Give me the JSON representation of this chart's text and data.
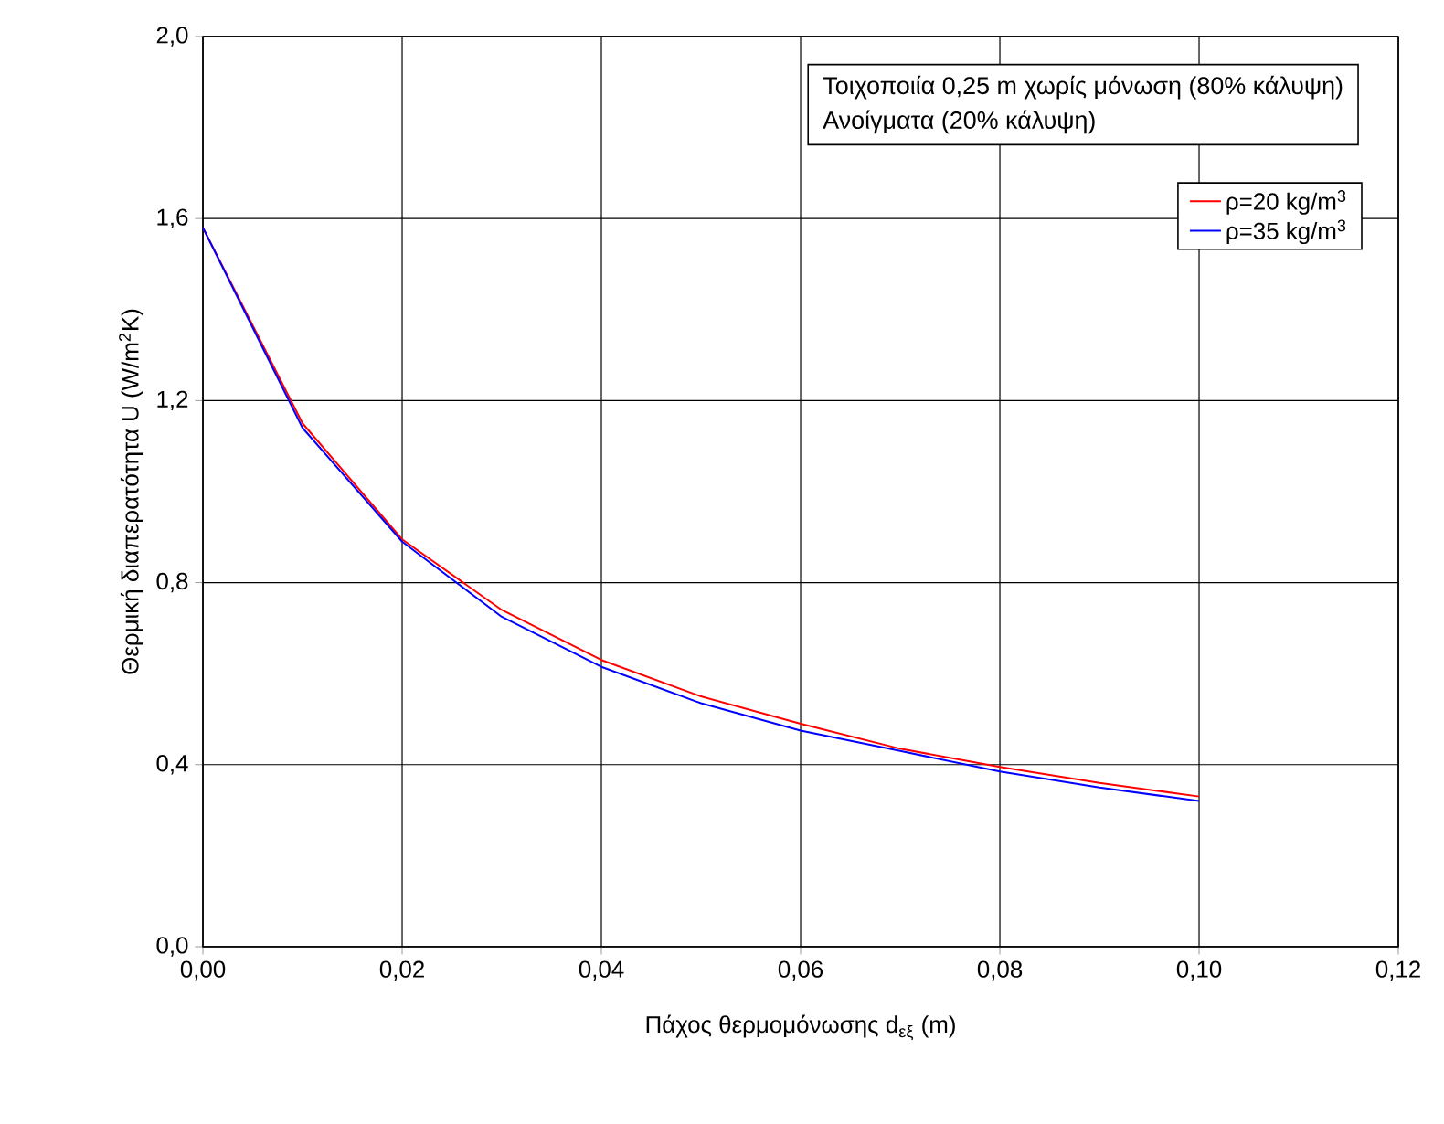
{
  "chart_data": {
    "type": "line",
    "xlabel": "Πάχος θερμομόνωσης d$_{εξ}$ (m)",
    "ylabel": "Θερμική διαπερατότητα U (W/m$^{2}$K)",
    "annotations": [
      "Τοιχοποιία 0,25 m χωρίς μόνωση (80% κάλυψη)",
      "Ανοίγματα (20% κάλυψη)"
    ],
    "x": [
      0,
      0.01,
      0.02,
      0.03,
      0.04,
      0.05,
      0.06,
      0.07,
      0.08,
      0.09,
      0.1
    ],
    "series": [
      {
        "name": "ρ=20 kg/m$^{3}$",
        "color": "#ff0000",
        "values": [
          1.58,
          1.15,
          0.895,
          0.74,
          0.63,
          0.55,
          0.49,
          0.435,
          0.395,
          0.36,
          0.33
        ]
      },
      {
        "name": "ρ=35 kg/m$^{3}$",
        "color": "#0000ff",
        "values": [
          1.58,
          1.14,
          0.89,
          0.725,
          0.615,
          0.535,
          0.475,
          0.43,
          0.385,
          0.35,
          0.32
        ]
      }
    ],
    "xlim": [
      0,
      0.12
    ],
    "ylim": [
      0,
      2.0
    ],
    "xticks": [
      {
        "value": 0,
        "label": "0,00"
      },
      {
        "value": 0.02,
        "label": "0,02"
      },
      {
        "value": 0.04,
        "label": "0,04"
      },
      {
        "value": 0.06,
        "label": "0,06"
      },
      {
        "value": 0.08,
        "label": "0,08"
      },
      {
        "value": 0.1,
        "label": "0,10"
      },
      {
        "value": 0.12,
        "label": "0,12"
      }
    ],
    "yticks": [
      {
        "value": 0,
        "label": "0,0"
      },
      {
        "value": 0.4,
        "label": "0,4"
      },
      {
        "value": 0.8,
        "label": "0,8"
      },
      {
        "value": 1.2,
        "label": "1,2"
      },
      {
        "value": 1.6,
        "label": "1,6"
      },
      {
        "value": 2.0,
        "label": "2,0"
      }
    ],
    "grid": true,
    "legend": "top right",
    "marker": "none",
    "line_style": "solid"
  }
}
